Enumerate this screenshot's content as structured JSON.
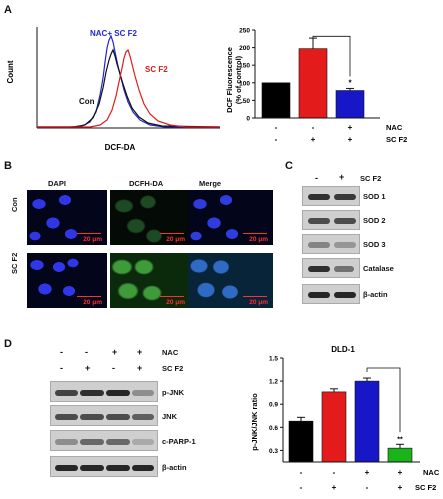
{
  "panels": {
    "a": "A",
    "b": "B",
    "c": "C",
    "d": "D"
  },
  "panel_a": {
    "flow": {
      "ylabel": "Count",
      "xlabel": "DCF-DA",
      "legend_nac": "NAC+ SC F2",
      "label_con": "Con",
      "label_scf2": "SC F2",
      "colors": {
        "con": "#111111",
        "scf2": "#e11b1b",
        "nac": "#2424d6"
      }
    },
    "bar": {
      "ylabel": "DCF Fluorescence\n(% of control)",
      "ticks": [
        0,
        50,
        100,
        150,
        200,
        250
      ],
      "row_nac_label": "NAC",
      "row_sc_label": "SC F2",
      "row_nac": [
        "-",
        "-",
        "+"
      ],
      "row_sc": [
        "-",
        "+",
        "+"
      ],
      "star": "*"
    }
  },
  "panel_b": {
    "cols": [
      "DAPI",
      "DCFH-DA",
      "Merge"
    ],
    "rows": [
      "Con",
      "SC F2"
    ],
    "scale_bar": "20 μm"
  },
  "panel_c": {
    "header_symbols": [
      "-",
      "+"
    ],
    "header_label": "SC F2",
    "rows": [
      "SOD 1",
      "SOD 2",
      "SOD 3",
      "Catalase",
      "β-actin"
    ]
  },
  "panel_d": {
    "header_rows": [
      {
        "label": "NAC",
        "symbols": [
          "-",
          "-",
          "+",
          "+"
        ]
      },
      {
        "label": "SC F2",
        "symbols": [
          "-",
          "+",
          "-",
          "+"
        ]
      }
    ],
    "blot_rows": [
      "p-JNK",
      "JNK",
      "c-PARP-1",
      "β-actin"
    ],
    "chart": {
      "title": "DLD-1",
      "ylabel": "p-JNK/JNK ratio",
      "ticks": [
        0.3,
        0.6,
        0.9,
        1.2,
        1.5
      ],
      "row_nac_label": "NAC",
      "row_sc_label": "SC F2",
      "row_nac": [
        "-",
        "-",
        "+",
        "+"
      ],
      "row_sc": [
        "-",
        "+",
        "-",
        "+"
      ],
      "star": "**"
    }
  },
  "chart_data": [
    {
      "type": "bar",
      "categories": [
        "Control",
        "SC F2",
        "NAC + SC F2"
      ],
      "values": [
        100,
        197,
        78
      ],
      "errors": [
        0,
        30,
        6
      ],
      "colors": [
        "#000000",
        "#e31b1b",
        "#1717c8"
      ],
      "ylabel": "DCF Fluorescence (% of control)",
      "ylim": [
        0,
        250
      ]
    },
    {
      "type": "bar",
      "title": "DLD-1",
      "categories": [
        "Control",
        "SC F2",
        "NAC",
        "NAC + SC F2"
      ],
      "values": [
        0.68,
        1.06,
        1.2,
        0.33
      ],
      "errors": [
        0.05,
        0.04,
        0.04,
        0.05
      ],
      "colors": [
        "#000000",
        "#e31b1b",
        "#1717c8",
        "#18b418"
      ],
      "ylabel": "p-JNK/JNK ratio",
      "ylim": [
        0.15,
        1.5
      ]
    }
  ]
}
